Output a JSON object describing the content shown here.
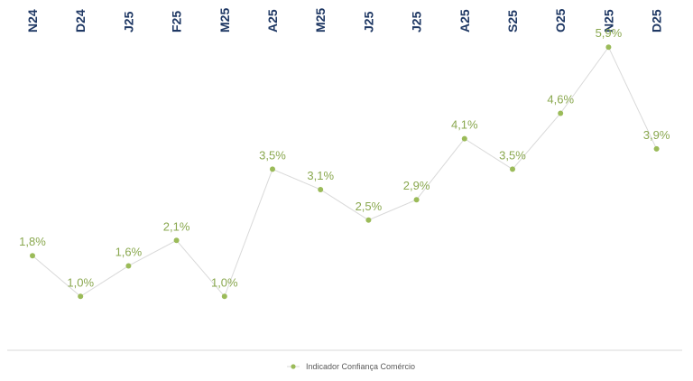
{
  "chart_data": {
    "type": "line",
    "categories": [
      "N24",
      "D24",
      "J25",
      "F25",
      "M25",
      "A25",
      "M25",
      "J25",
      "J25",
      "A25",
      "S25",
      "O25",
      "N25",
      "D25"
    ],
    "series": [
      {
        "name": "Indicador Confiança Comércio",
        "values": [
          1.8,
          1.0,
          1.6,
          2.1,
          1.0,
          3.5,
          3.1,
          2.5,
          2.9,
          4.1,
          3.5,
          4.6,
          5.9,
          3.9
        ],
        "labels": [
          "1,8%",
          "1,0%",
          "1,6%",
          "2,1%",
          "1,0%",
          "3,5%",
          "3,1%",
          "2,5%",
          "2,9%",
          "4,1%",
          "3,5%",
          "4,6%",
          "5,9%",
          "3,9%"
        ]
      }
    ],
    "x_axis_position": "top",
    "ylim": [
      -0.5,
      6.5
    ],
    "grid": false,
    "legend_position": "bottom-center",
    "colors": {
      "marker": "#9bbb59",
      "line": "#d9d9d9",
      "label": "#8aa84f",
      "tick": "#1f3864"
    }
  }
}
